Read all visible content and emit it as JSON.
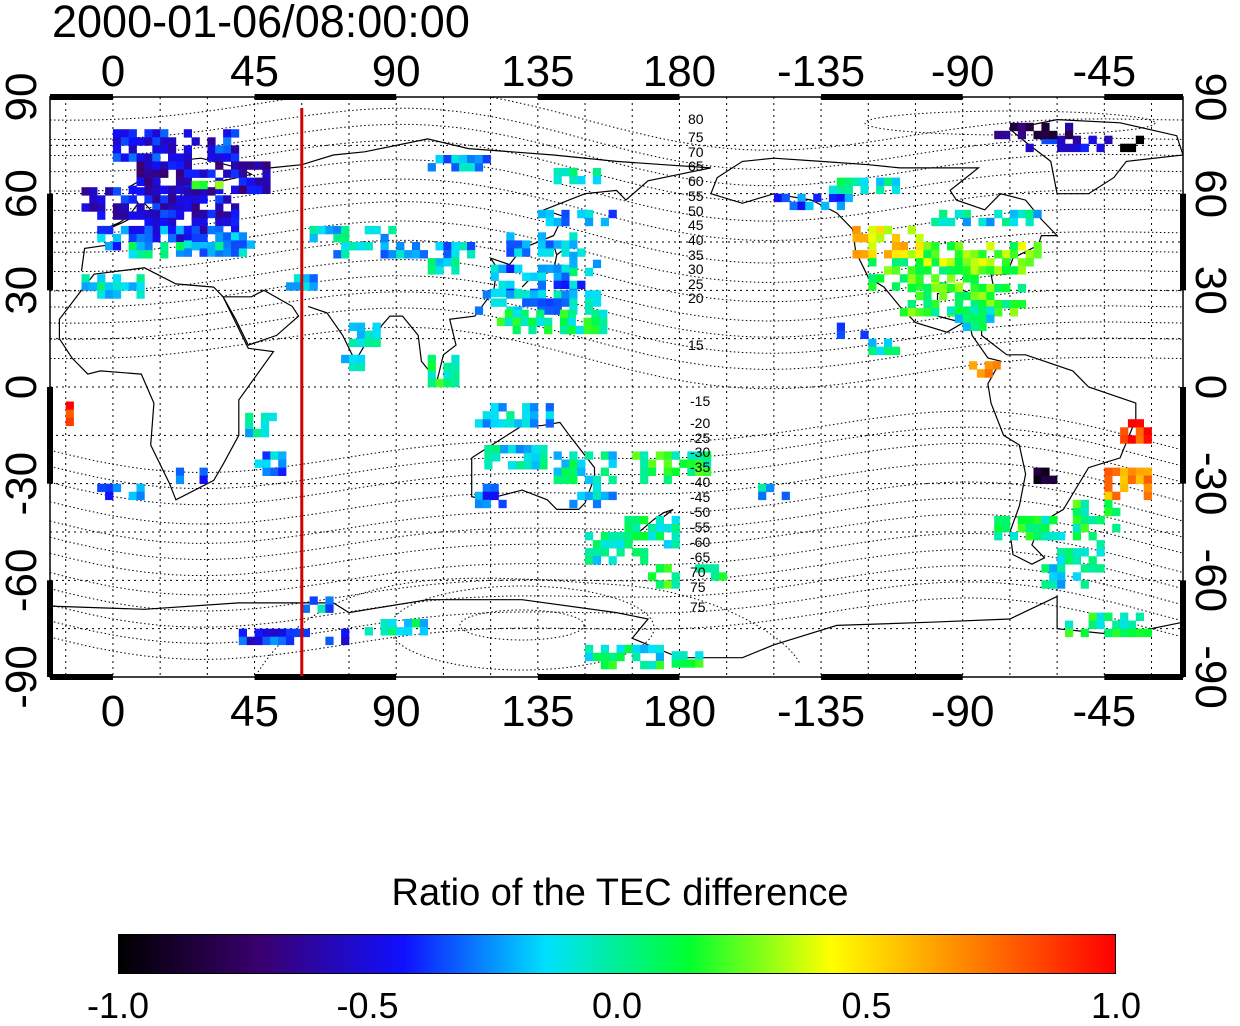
{
  "timestamp": "2000-01-06/08:00:00",
  "map": {
    "x_ticks": [
      "0",
      "45",
      "90",
      "135",
      "180",
      "-135",
      "-90",
      "-45"
    ],
    "x_tick_lons": [
      0,
      45,
      90,
      135,
      180,
      225,
      270,
      315
    ],
    "lon_range": [
      -20,
      340
    ],
    "y_ticks": [
      "90",
      "60",
      "30",
      "0",
      "-30",
      "-60",
      "-90"
    ],
    "y_tick_lats": [
      90,
      60,
      30,
      0,
      -30,
      -60,
      -90
    ],
    "lat_range": [
      -90,
      90
    ],
    "marker_longitude": 60,
    "marker_color": "#d40000",
    "contour_labels_north": [
      "80",
      "75",
      "70",
      "65",
      "60",
      "55",
      "50",
      "45",
      "40",
      "35",
      "30",
      "25",
      "20",
      "15"
    ],
    "contour_labels_south": [
      "-15",
      "-20",
      "-25",
      "-30",
      "-35",
      "-40",
      "-45",
      "-50",
      "-55",
      "-60",
      "-65",
      "70",
      "75"
    ]
  },
  "colorbar": {
    "title": "Ratio of the TEC difference",
    "tick_labels": [
      "-1.0",
      "-0.5",
      "0.0",
      "0.5",
      "1.0"
    ],
    "range": [
      -1.0,
      1.0
    ],
    "colors": [
      "#000000",
      "#3a0070",
      "#1010ff",
      "#00e0ff",
      "#00ff30",
      "#ffff00",
      "#ff8000",
      "#ff0000"
    ]
  }
}
